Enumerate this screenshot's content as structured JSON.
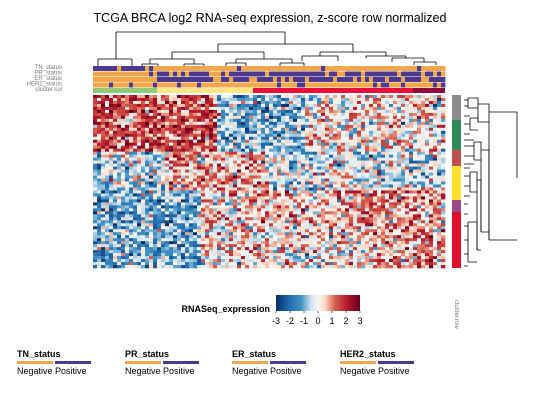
{
  "chart_data": {
    "type": "heatmap",
    "title": "TCGA BRCA log2 RNA-seq expression, z-score row normalized",
    "annotation_tracks": [
      "TN_status",
      "PR_status",
      "ER_status",
      "HER2_status",
      "cluster.col"
    ],
    "row_annotation_label": "cluster.row",
    "color_legend": {
      "title": "RNASeq_expression",
      "ticks": [
        "-3",
        "-2",
        "-1",
        "0",
        "1",
        "2",
        "3"
      ],
      "range": [
        -3,
        3
      ],
      "colors": {
        "low": "#053061",
        "mid": "#f7f7f7",
        "high": "#67001f"
      }
    },
    "status_legends": [
      {
        "title": "TN_status",
        "labels": [
          "Negative",
          "Positive"
        ]
      },
      {
        "title": "PR_status",
        "labels": [
          "Negative",
          "Positive"
        ]
      },
      {
        "title": "ER_status",
        "labels": [
          "Negative",
          "Positive"
        ]
      },
      {
        "title": "HER2_status",
        "labels": [
          "Negative",
          "Positive"
        ]
      }
    ],
    "status_colors": {
      "Negative": "#f4a74a",
      "Positive": "#4b3a8e"
    },
    "column_cluster_colors": [
      "#8fc97a",
      "#fde68a",
      "#e8103a",
      "#8a0c3e"
    ],
    "row_cluster_colors": [
      "#8c8c8c",
      "#2e8b57",
      "#c05050",
      "#fde030",
      "#9a4a8a",
      "#e0102a"
    ]
  }
}
